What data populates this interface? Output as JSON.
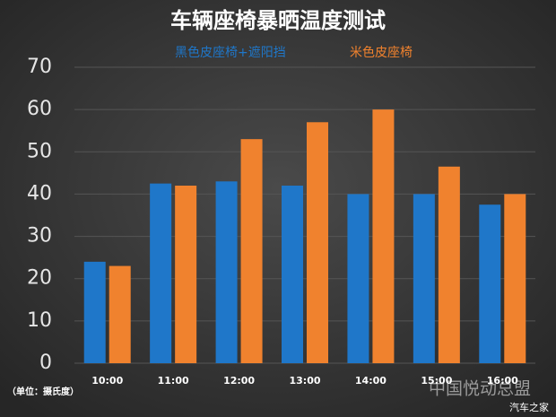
{
  "chart_data": {
    "type": "bar",
    "title": "车辆座椅暴晒温度测试",
    "categories": [
      "10:00",
      "11:00",
      "12:00",
      "13:00",
      "14:00",
      "15:00",
      "16:00"
    ],
    "series": [
      {
        "name": "黑色皮座椅+遮阳挡",
        "color": "#1f77c9",
        "values": [
          24,
          42.5,
          43,
          42,
          40,
          40,
          37.5
        ]
      },
      {
        "name": "米色皮座椅",
        "color": "#f0822e",
        "values": [
          23,
          42,
          53,
          57,
          60,
          46.5,
          40
        ]
      }
    ],
    "ylim": [
      0,
      70
    ],
    "yticks": [
      0,
      10,
      20,
      30,
      40,
      50,
      60,
      70
    ],
    "grid": true,
    "unit_note": "（单位：摄氏度）",
    "watermarks": [
      "中国悦动总盟",
      "汽车之家"
    ]
  }
}
